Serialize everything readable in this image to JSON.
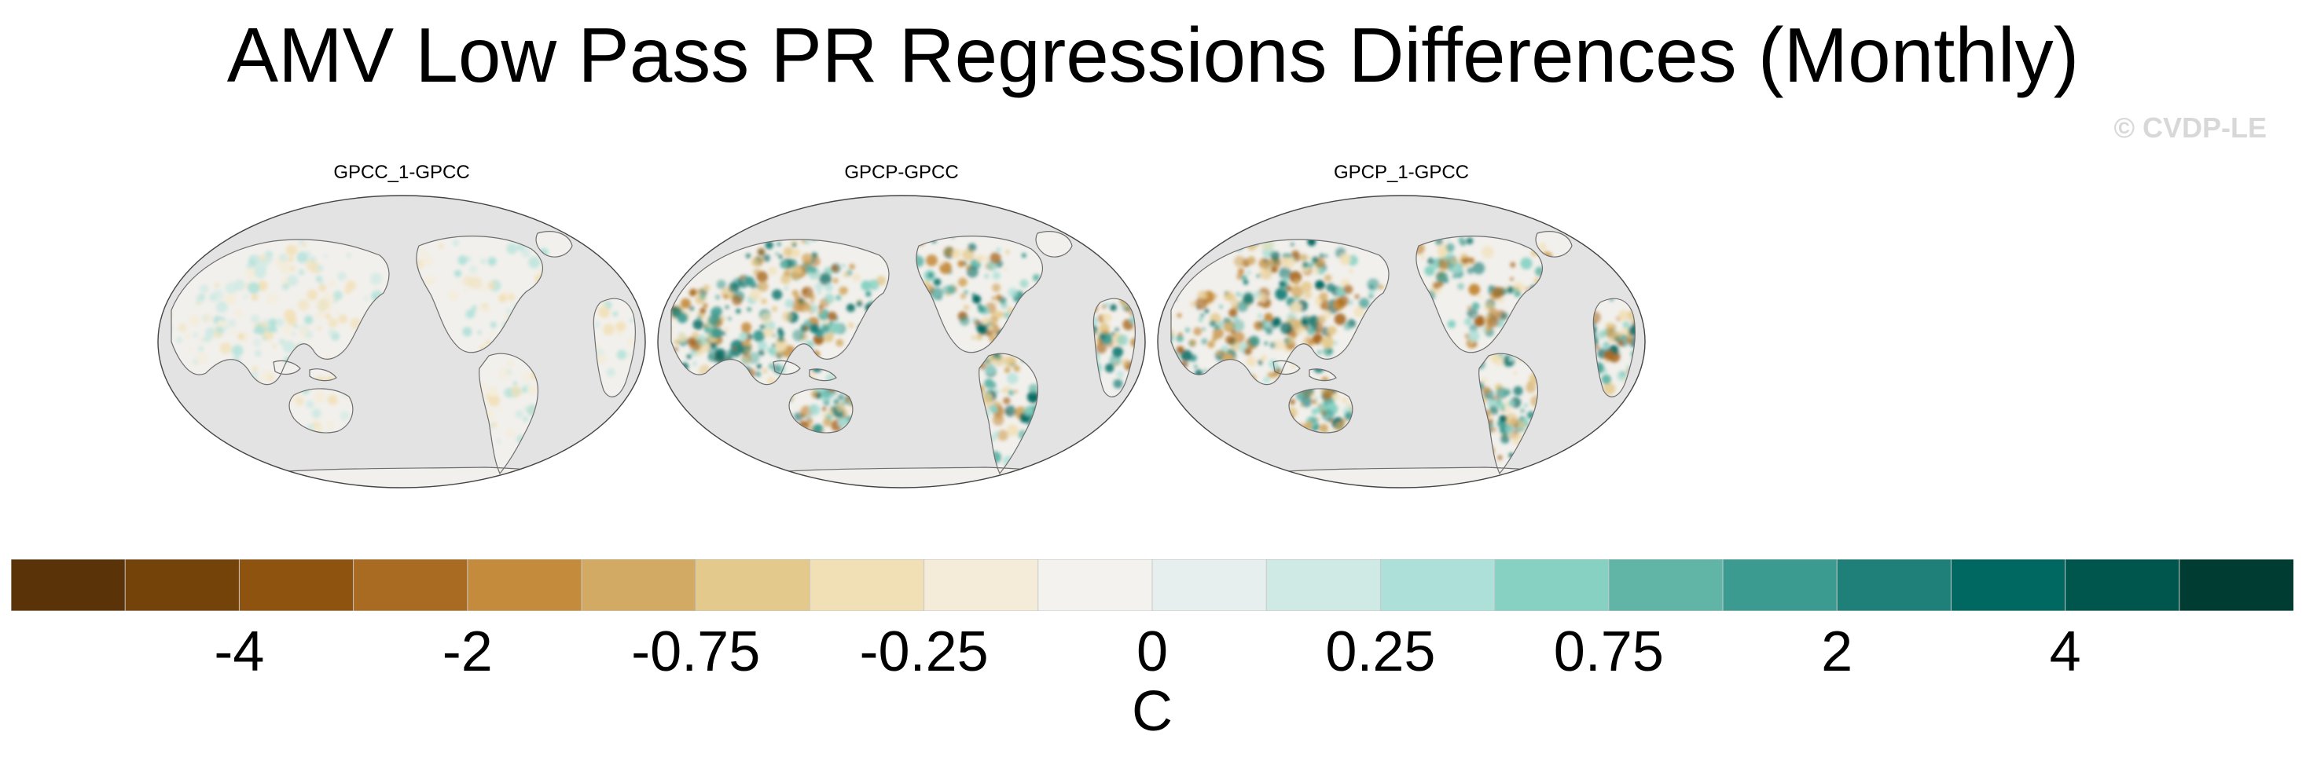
{
  "title": "AMV Low Pass PR Regressions Differences (Monthly)",
  "watermark": "© CVDP-LE",
  "chart_data": {
    "type": "heatmap",
    "projection": "Robinson (Pacific-centered)",
    "panels": [
      {
        "title": "GPCC_1-GPCC",
        "intensity": 0.35
      },
      {
        "title": "GPCP-GPCC",
        "intensity": 1.0
      },
      {
        "title": "GPCP_1-GPCC",
        "intensity": 1.0
      }
    ],
    "colorbar": {
      "label": "C",
      "tick_labels": [
        "-4",
        "-2",
        "-0.75",
        "-0.25",
        "0",
        "0.25",
        "0.75",
        "2",
        "4"
      ],
      "tick_levels": [
        -4,
        -2,
        -0.75,
        -0.25,
        0,
        0.25,
        0.75,
        2,
        4
      ],
      "colors": [
        "#5a3408",
        "#744309",
        "#8e530f",
        "#a96a22",
        "#c58b3c",
        "#d3aa63",
        "#e4c98c",
        "#f1e0b6",
        "#f4ecd9",
        "#f3f2ee",
        "#e6efed",
        "#cfe9e4",
        "#ade0d8",
        "#87d1c3",
        "#60b5a7",
        "#3c9b91",
        "#1e8078",
        "#006860",
        "#00554c",
        "#003c32"
      ]
    }
  }
}
